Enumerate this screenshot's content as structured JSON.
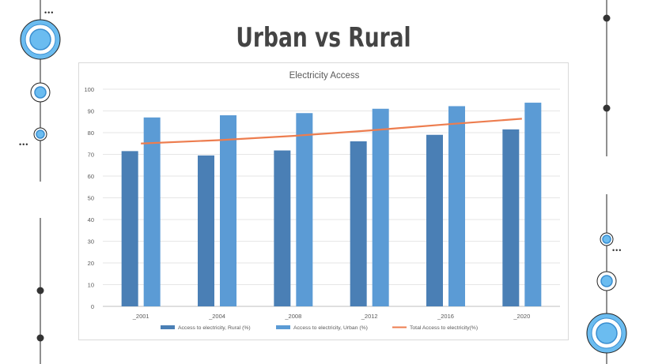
{
  "slide": {
    "title": "Urban vs Rural"
  },
  "colors": {
    "accent_light": "#6bbcf0",
    "accent_dark": "#3a8ed0",
    "rural": "#4a7fb5",
    "urban": "#5b9bd5",
    "total": "#ed7d4f"
  },
  "decorations": {
    "dots_text": "•••"
  },
  "chart_data": {
    "type": "bar",
    "title": "Electricity Access",
    "categories": [
      "_2001",
      "_2004",
      "_2008",
      "_2012",
      "_2016",
      "_2020"
    ],
    "series": [
      {
        "name": "Access to electricity, Rural (%)",
        "type": "bar",
        "values": [
          71.5,
          69.5,
          71.8,
          76,
          79,
          81.5
        ]
      },
      {
        "name": "Access to electricity, Urban (%)",
        "type": "bar",
        "values": [
          87,
          88,
          89,
          91,
          92.2,
          93.8
        ]
      },
      {
        "name": "Total Access to electricity(%)",
        "type": "line",
        "values": [
          75,
          76.5,
          78.5,
          81,
          83.8,
          86.4
        ]
      }
    ],
    "ylim": [
      0,
      100
    ],
    "yticks": [
      0,
      10,
      20,
      30,
      40,
      50,
      60,
      70,
      80,
      90,
      100
    ],
    "grid": true,
    "legend": "bottom"
  }
}
